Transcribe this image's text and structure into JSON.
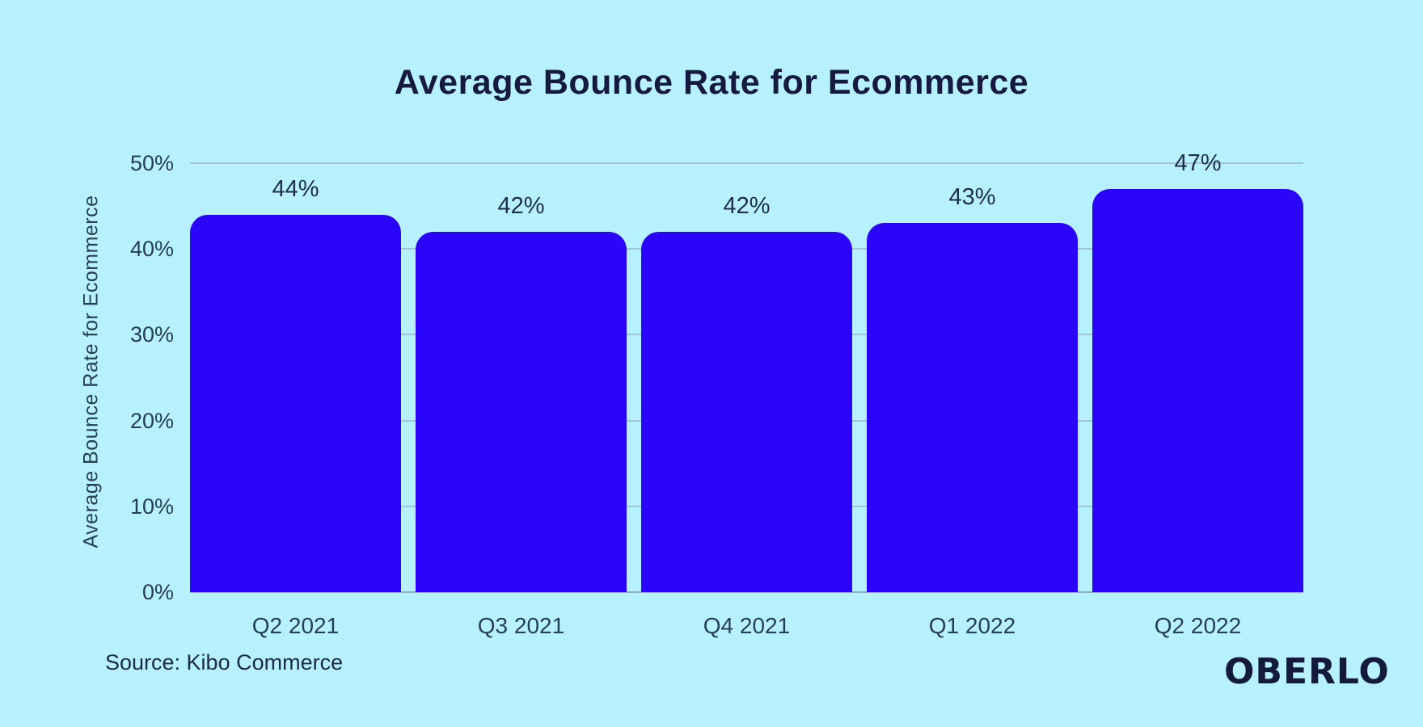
{
  "page": {
    "title": "Average Bounce Rate for Ecommerce",
    "source_note": "Source: Kibo Commerce",
    "brand_logo": "OBERLO"
  },
  "colors": {
    "background": "#B7F1FD",
    "bar": "#2A05F8",
    "title_text": "#171A40",
    "axis_text": "#27404F",
    "value_text": "#1E2F47",
    "source_text": "#1B2B45",
    "logo_text": "#141A3B",
    "gridline": "#A3C4D4",
    "baseline": "#8FB2C3"
  },
  "chart_data": {
    "type": "bar",
    "title": "Average Bounce Rate for Ecommerce",
    "categories": [
      "Q2 2021",
      "Q3 2021",
      "Q4 2021",
      "Q1 2022",
      "Q2 2022"
    ],
    "values": [
      44,
      42,
      42,
      43,
      47
    ],
    "value_labels": [
      "44%",
      "42%",
      "42%",
      "43%",
      "47%"
    ],
    "xlabel": "",
    "ylabel": "Average Bounce Rate for Ecommerce",
    "ylim": [
      0,
      50
    ],
    "ytick_values": [
      0,
      10,
      20,
      30,
      40,
      50
    ],
    "ytick_labels": [
      "0%",
      "10%",
      "20%",
      "30%",
      "40%",
      "50%"
    ],
    "grid": "horizontal",
    "legend_position": "none",
    "source": "Source: Kibo Commerce"
  }
}
